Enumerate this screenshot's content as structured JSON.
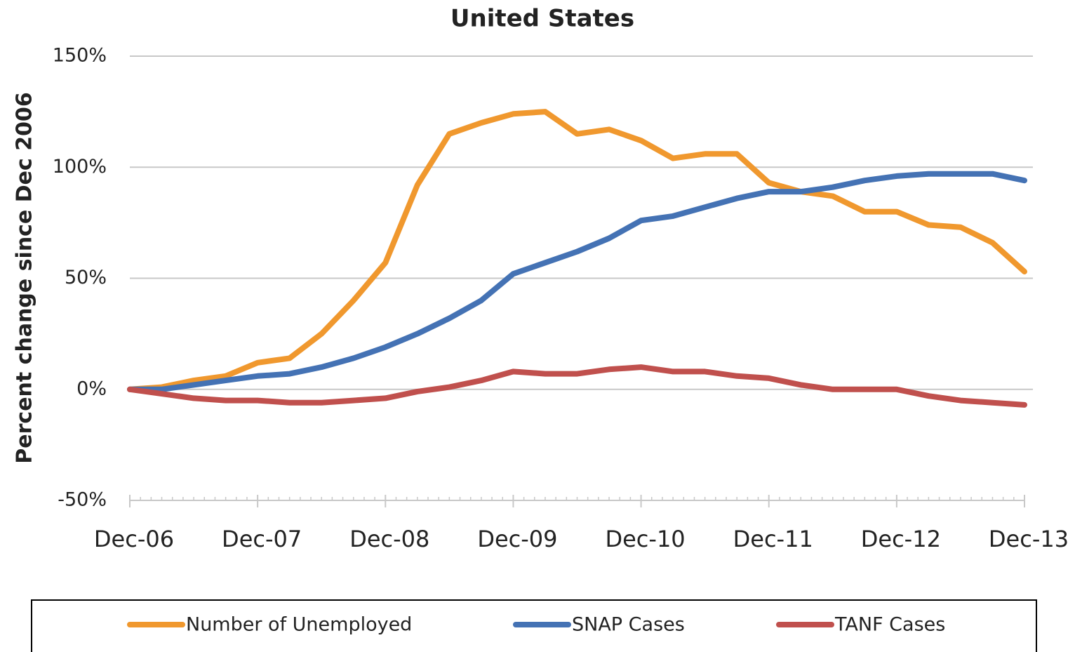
{
  "chart_data": {
    "type": "line",
    "title": "United States",
    "y_label": "Percent change since Dec 2006",
    "categories": [
      "Dec-06",
      null,
      null,
      null,
      "Dec-07",
      null,
      null,
      null,
      "Dec-08",
      null,
      null,
      null,
      "Dec-09",
      null,
      null,
      null,
      "Dec-10",
      null,
      null,
      null,
      "Dec-11",
      null,
      null,
      null,
      "Dec-12",
      null,
      null,
      null,
      "Dec-13"
    ],
    "series": [
      {
        "name": "Number of Unemployed",
        "color": "#f0982e",
        "values": [
          0,
          1,
          4,
          6,
          12,
          14,
          25,
          40,
          57,
          92,
          115,
          120,
          124,
          125,
          115,
          117,
          112,
          104,
          106,
          106,
          93,
          89,
          87,
          80,
          80,
          74,
          73,
          66,
          53
        ]
      },
      {
        "name": "SNAP Cases",
        "color": "#4472b4",
        "values": [
          0,
          0,
          2,
          4,
          6,
          7,
          10,
          14,
          19,
          25,
          32,
          40,
          52,
          57,
          62,
          68,
          76,
          78,
          82,
          86,
          89,
          89,
          91,
          94,
          96,
          97,
          97,
          97,
          94
        ]
      },
      {
        "name": "TANF Cases",
        "color": "#c0504d",
        "values": [
          0,
          -2,
          -4,
          -5,
          -5,
          -6,
          -6,
          -5,
          -4,
          -1,
          1,
          4,
          8,
          7,
          7,
          9,
          10,
          8,
          8,
          6,
          5,
          2,
          0,
          0,
          0,
          -3,
          -5,
          -6,
          -7
        ]
      }
    ],
    "ylim": [
      -50,
      150
    ],
    "yticks": [
      {
        "value": -50,
        "label": "-50%"
      },
      {
        "value": 0,
        "label": "0%"
      },
      {
        "value": 50,
        "label": "50%"
      },
      {
        "value": 100,
        "label": "100%"
      },
      {
        "value": 150,
        "label": "150%"
      }
    ],
    "grid": true,
    "legend": "bottom"
  }
}
